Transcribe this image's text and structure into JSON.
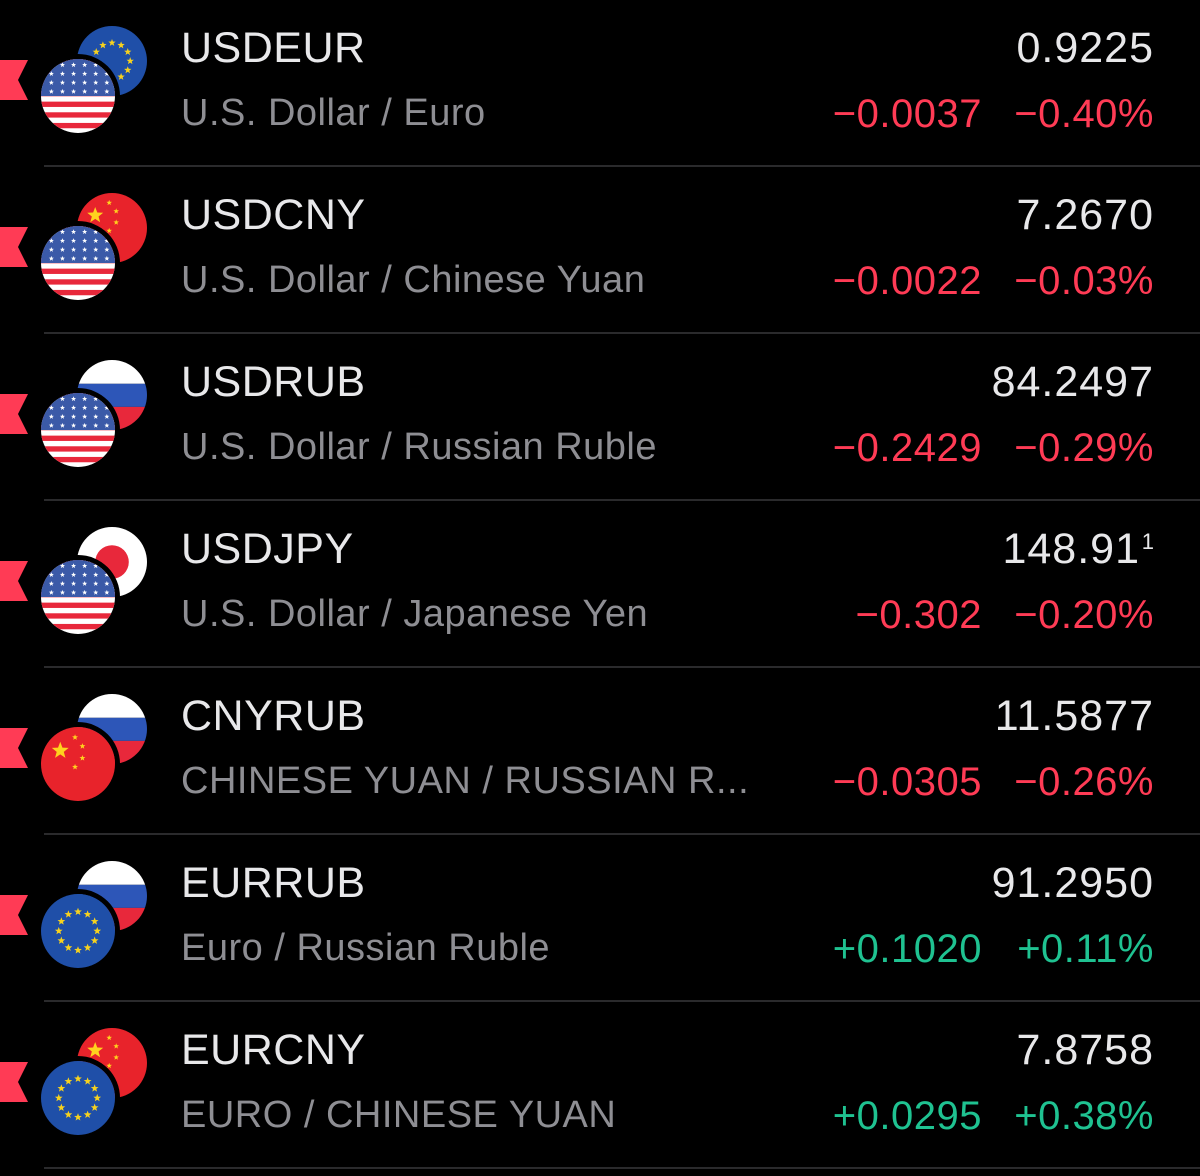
{
  "colors": {
    "negative": "#ff3b55",
    "positive": "#1fc291",
    "primary_text": "#e8e8ea",
    "secondary_text": "#8e8e93",
    "background": "#000000",
    "marker": "#ff3b55"
  },
  "watchlist": {
    "rows": [
      {
        "symbol": "USDEUR",
        "name": "U.S. Dollar / Euro",
        "price": "0.9225",
        "price_sup": "",
        "change": "−0.0037",
        "percent": "−0.40%",
        "direction": "down",
        "base_flag": "us-flag-icon",
        "quote_flag": "eu-flag-icon"
      },
      {
        "symbol": "USDCNY",
        "name": "U.S. Dollar / Chinese Yuan",
        "price": "7.2670",
        "price_sup": "",
        "change": "−0.0022",
        "percent": "−0.03%",
        "direction": "down",
        "base_flag": "us-flag-icon",
        "quote_flag": "cn-flag-icon"
      },
      {
        "symbol": "USDRUB",
        "name": "U.S. Dollar / Russian Ruble",
        "price": "84.2497",
        "price_sup": "",
        "change": "−0.2429",
        "percent": "−0.29%",
        "direction": "down",
        "base_flag": "us-flag-icon",
        "quote_flag": "ru-flag-icon"
      },
      {
        "symbol": "USDJPY",
        "name": "U.S. Dollar / Japanese Yen",
        "price": "148.91",
        "price_sup": "1",
        "change": "−0.302",
        "percent": "−0.20%",
        "direction": "down",
        "base_flag": "us-flag-icon",
        "quote_flag": "jp-flag-icon"
      },
      {
        "symbol": "CNYRUB",
        "name": "CHINESE YUAN / RUSSIAN R...",
        "price": "11.5877",
        "price_sup": "",
        "change": "−0.0305",
        "percent": "−0.26%",
        "direction": "down",
        "base_flag": "cn-flag-icon",
        "quote_flag": "ru-flag-icon"
      },
      {
        "symbol": "EURRUB",
        "name": "Euro / Russian Ruble",
        "price": "91.2950",
        "price_sup": "",
        "change": "+0.1020",
        "percent": "+0.11%",
        "direction": "up",
        "base_flag": "eu-flag-icon",
        "quote_flag": "ru-flag-icon"
      },
      {
        "symbol": "EURCNY",
        "name": "EURO / CHINESE YUAN",
        "price": "7.8758",
        "price_sup": "",
        "change": "+0.0295",
        "percent": "+0.38%",
        "direction": "up",
        "base_flag": "eu-flag-icon",
        "quote_flag": "cn-flag-icon"
      }
    ]
  }
}
